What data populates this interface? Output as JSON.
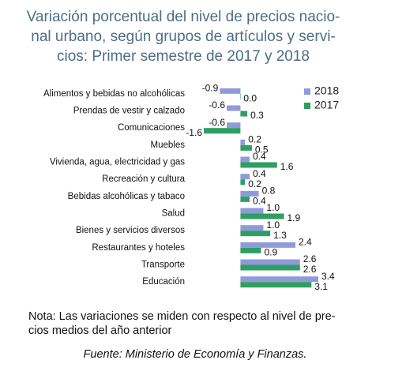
{
  "chart_data": {
    "type": "hbar",
    "title": [
      "Variación porcentual del nivel de precios nacio-",
      "nal urbano, según grupos de artículos y servi-",
      "cios: Primer semestre de 2017 y 2018"
    ],
    "categories": [
      "Alimentos y bebidas no alcohólicas",
      "Prendas de vestir y calzado",
      "Comunicaciones",
      "Muebles",
      "Vivienda, agua, electricidad y gas",
      "Recreación y cultura",
      "Bebidas alcohólicas y tabaco",
      "Salud",
      "Bienes y servicios diversos",
      "Restaurantes y hoteles",
      "Transporte",
      "Educación"
    ],
    "series": [
      {
        "name": "2018",
        "color": "#8f9bd9",
        "values": [
          -0.9,
          -0.6,
          -0.6,
          0.2,
          0.4,
          0.4,
          0.8,
          1.0,
          1.0,
          2.4,
          2.6,
          3.4
        ],
        "value_labels": [
          "-0.9",
          "-0.6",
          "-0.6",
          "0.2",
          "0.4",
          "0.4",
          "0.8",
          "1.0",
          "1.0",
          "2.4",
          "2.6",
          "3.4"
        ]
      },
      {
        "name": "2017",
        "color": "#2f9e62",
        "values": [
          0.0,
          0.3,
          -1.6,
          0.5,
          1.6,
          0.2,
          0.4,
          1.9,
          1.3,
          0.9,
          2.6,
          3.1
        ],
        "value_labels": [
          "0.0",
          "0.3",
          "-1.6",
          "0.5",
          "1.6",
          "0.2",
          "0.4",
          "1.9",
          "1.3",
          "0.9",
          "2.6",
          "3.1"
        ]
      }
    ],
    "legend": "top-right",
    "note": [
      "Nota: Las variaciones se miden con respecto al nivel de pre-",
      "cios medios del año anterior"
    ],
    "source": "Fuente: Ministerio de Economía y Finanzas."
  }
}
